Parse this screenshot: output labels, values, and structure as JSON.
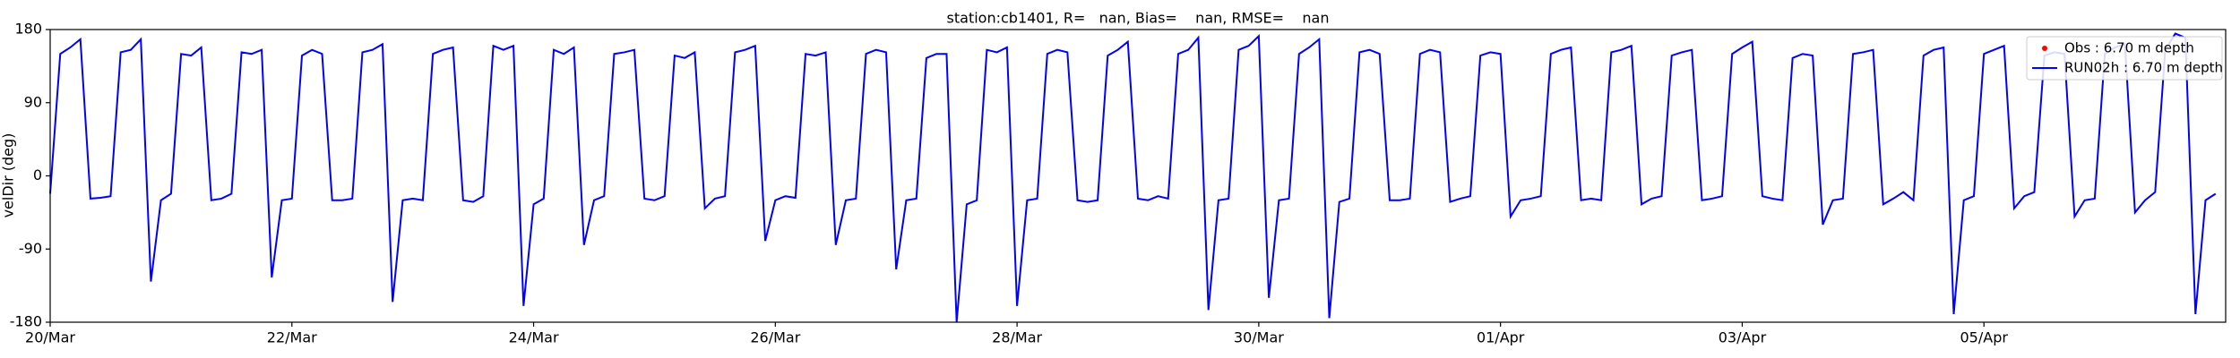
{
  "chart_data": {
    "type": "line",
    "title": "station:cb1401, R=   nan, Bias=    nan, RMSE=    nan",
    "ylabel": "velDir (deg)",
    "xlim": [
      "20/Mar",
      "07/Apr"
    ],
    "xticks": [
      "20/Mar",
      "22/Mar",
      "24/Mar",
      "26/Mar",
      "28/Mar",
      "30/Mar",
      "01/Apr",
      "03/Apr",
      "05/Apr"
    ],
    "ylim": [
      -180,
      180
    ],
    "yticks": [
      -180,
      -90,
      0,
      90,
      180
    ],
    "grid": false,
    "legend": "upper right",
    "x": [
      "20/Mar 00:00",
      "20/Mar 02:00",
      "20/Mar 04:00",
      "20/Mar 06:00",
      "20/Mar 08:00",
      "20/Mar 10:00",
      "20/Mar 12:00",
      "20/Mar 14:00",
      "20/Mar 16:00",
      "20/Mar 18:00",
      "20/Mar 20:00",
      "20/Mar 22:00",
      "21/Mar 00:00",
      "21/Mar 02:00",
      "21/Mar 04:00",
      "21/Mar 06:00",
      "21/Mar 08:00",
      "21/Mar 10:00",
      "21/Mar 12:00",
      "21/Mar 14:00",
      "21/Mar 16:00",
      "21/Mar 18:00",
      "21/Mar 20:00",
      "21/Mar 22:00",
      "22/Mar 00:00",
      "22/Mar 02:00",
      "22/Mar 04:00",
      "22/Mar 06:00",
      "22/Mar 08:00",
      "22/Mar 10:00",
      "22/Mar 12:00",
      "22/Mar 14:00",
      "22/Mar 16:00",
      "22/Mar 18:00",
      "22/Mar 20:00",
      "22/Mar 22:00",
      "23/Mar 00:00",
      "23/Mar 02:00",
      "23/Mar 04:00",
      "23/Mar 06:00",
      "23/Mar 08:00",
      "23/Mar 10:00",
      "23/Mar 12:00",
      "23/Mar 14:00",
      "23/Mar 16:00",
      "23/Mar 18:00",
      "23/Mar 20:00",
      "23/Mar 22:00",
      "24/Mar 00:00",
      "24/Mar 02:00",
      "24/Mar 04:00",
      "24/Mar 06:00",
      "24/Mar 08:00",
      "24/Mar 10:00",
      "24/Mar 12:00",
      "24/Mar 14:00",
      "24/Mar 16:00",
      "24/Mar 18:00",
      "24/Mar 20:00",
      "24/Mar 22:00",
      "25/Mar 00:00",
      "25/Mar 02:00",
      "25/Mar 04:00",
      "25/Mar 06:00",
      "25/Mar 08:00",
      "25/Mar 10:00",
      "25/Mar 12:00",
      "25/Mar 14:00",
      "25/Mar 16:00",
      "25/Mar 18:00",
      "25/Mar 20:00",
      "25/Mar 22:00",
      "26/Mar 00:00",
      "26/Mar 02:00",
      "26/Mar 04:00",
      "26/Mar 06:00",
      "26/Mar 08:00",
      "26/Mar 10:00",
      "26/Mar 12:00",
      "26/Mar 14:00",
      "26/Mar 16:00",
      "26/Mar 18:00",
      "26/Mar 20:00",
      "26/Mar 22:00",
      "27/Mar 00:00",
      "27/Mar 02:00",
      "27/Mar 04:00",
      "27/Mar 06:00",
      "27/Mar 08:00",
      "27/Mar 10:00",
      "27/Mar 12:00",
      "27/Mar 14:00",
      "27/Mar 16:00",
      "27/Mar 18:00",
      "27/Mar 20:00",
      "27/Mar 22:00",
      "28/Mar 00:00",
      "28/Mar 02:00",
      "28/Mar 04:00",
      "28/Mar 06:00",
      "28/Mar 08:00",
      "28/Mar 10:00",
      "28/Mar 12:00",
      "28/Mar 14:00",
      "28/Mar 16:00",
      "28/Mar 18:00",
      "28/Mar 20:00",
      "28/Mar 22:00",
      "29/Mar 00:00",
      "29/Mar 02:00",
      "29/Mar 04:00",
      "29/Mar 06:00",
      "29/Mar 08:00",
      "29/Mar 10:00",
      "29/Mar 12:00",
      "29/Mar 14:00",
      "29/Mar 16:00",
      "29/Mar 18:00",
      "29/Mar 20:00",
      "29/Mar 22:00",
      "30/Mar 00:00",
      "30/Mar 02:00",
      "30/Mar 04:00",
      "30/Mar 06:00",
      "30/Mar 08:00",
      "30/Mar 10:00",
      "30/Mar 12:00",
      "30/Mar 14:00",
      "30/Mar 16:00",
      "30/Mar 18:00",
      "30/Mar 20:00",
      "30/Mar 22:00",
      "31/Mar 00:00",
      "31/Mar 02:00",
      "31/Mar 04:00",
      "31/Mar 06:00",
      "31/Mar 08:00",
      "31/Mar 10:00",
      "31/Mar 12:00",
      "31/Mar 14:00",
      "31/Mar 16:00",
      "31/Mar 18:00",
      "31/Mar 20:00",
      "31/Mar 22:00",
      "01/Apr 00:00",
      "01/Apr 02:00",
      "01/Apr 04:00",
      "01/Apr 06:00",
      "01/Apr 08:00",
      "01/Apr 10:00",
      "01/Apr 12:00",
      "01/Apr 14:00",
      "01/Apr 16:00",
      "01/Apr 18:00",
      "01/Apr 20:00",
      "01/Apr 22:00",
      "02/Apr 00:00",
      "02/Apr 02:00",
      "02/Apr 04:00",
      "02/Apr 06:00",
      "02/Apr 08:00",
      "02/Apr 10:00",
      "02/Apr 12:00",
      "02/Apr 14:00",
      "02/Apr 16:00",
      "02/Apr 18:00",
      "02/Apr 20:00",
      "02/Apr 22:00",
      "03/Apr 00:00",
      "03/Apr 02:00",
      "03/Apr 04:00",
      "03/Apr 06:00",
      "03/Apr 08:00",
      "03/Apr 10:00",
      "03/Apr 12:00",
      "03/Apr 14:00",
      "03/Apr 16:00",
      "03/Apr 18:00",
      "03/Apr 20:00",
      "03/Apr 22:00",
      "04/Apr 00:00",
      "04/Apr 02:00",
      "04/Apr 04:00",
      "04/Apr 06:00",
      "04/Apr 08:00",
      "04/Apr 10:00",
      "04/Apr 12:00",
      "04/Apr 14:00",
      "04/Apr 16:00",
      "04/Apr 18:00",
      "04/Apr 20:00",
      "04/Apr 22:00",
      "05/Apr 00:00",
      "05/Apr 02:00",
      "05/Apr 04:00",
      "05/Apr 06:00",
      "05/Apr 08:00",
      "05/Apr 10:00",
      "05/Apr 12:00",
      "05/Apr 14:00",
      "05/Apr 16:00",
      "05/Apr 18:00",
      "05/Apr 20:00",
      "05/Apr 22:00",
      "06/Apr 00:00",
      "06/Apr 02:00",
      "06/Apr 04:00",
      "06/Apr 06:00",
      "06/Apr 08:00",
      "06/Apr 10:00",
      "06/Apr 12:00",
      "06/Apr 14:00",
      "06/Apr 16:00",
      "06/Apr 18:00",
      "06/Apr 20:00",
      "06/Apr 22:00"
    ],
    "series": [
      {
        "name": "Obs : 6.70 m depth",
        "color": "#ff0000",
        "marker": "dot",
        "values": [
          null,
          null,
          null,
          null,
          null,
          null,
          null,
          null,
          null,
          null,
          null,
          null,
          null,
          null,
          null,
          null,
          null,
          null,
          null,
          null,
          null,
          null,
          null,
          null,
          null,
          null,
          null,
          null,
          null,
          null,
          null,
          null,
          null,
          null,
          null,
          null,
          null,
          null,
          null,
          null,
          null,
          null,
          null,
          null,
          null,
          null,
          null,
          null,
          null,
          null,
          null,
          null,
          null,
          null,
          null,
          null,
          null,
          null,
          null,
          null,
          null,
          null,
          null,
          null,
          null,
          null,
          null,
          null,
          null,
          null,
          null,
          null,
          null,
          null,
          null,
          null,
          null,
          null,
          null,
          null,
          null,
          null,
          null,
          null,
          null,
          null,
          null,
          null,
          null,
          null,
          null,
          null,
          null,
          null,
          null,
          null,
          null,
          null,
          null,
          null,
          null,
          null,
          null,
          null,
          null,
          null,
          null,
          null,
          null,
          null,
          null,
          null,
          null,
          null,
          null,
          null,
          null,
          null,
          null,
          null,
          null,
          null,
          null,
          null,
          null,
          null,
          null,
          null,
          null,
          null,
          null,
          null,
          null,
          null,
          null,
          null,
          null,
          null,
          null,
          null,
          null,
          null,
          null,
          null,
          null,
          null,
          null,
          null,
          null,
          null,
          null,
          null,
          null,
          null,
          null,
          null,
          null,
          null,
          null,
          null,
          null,
          null,
          null,
          null,
          null,
          null,
          null,
          null,
          null,
          null,
          null,
          null,
          null,
          null,
          null,
          null,
          null,
          null,
          null,
          null,
          null,
          null,
          null,
          null,
          null,
          null,
          null,
          null,
          null,
          null,
          null,
          null,
          null,
          null,
          null,
          null,
          null,
          null,
          null,
          null,
          null,
          null,
          null,
          null,
          null,
          null,
          null,
          null,
          null,
          null,
          null,
          null,
          null,
          null,
          null,
          null
        ]
      },
      {
        "name": "RUN02h : 6.70 m depth",
        "color": "#0000ff",
        "marker": "line",
        "values": [
          -22,
          150,
          158,
          168,
          -28,
          -27,
          -25,
          152,
          155,
          168,
          -130,
          -30,
          -22,
          150,
          148,
          158,
          -30,
          -28,
          -22,
          152,
          150,
          155,
          -125,
          -30,
          -28,
          148,
          155,
          150,
          -30,
          -30,
          -28,
          152,
          155,
          162,
          -155,
          -30,
          -28,
          -30,
          150,
          155,
          158,
          -30,
          -32,
          -25,
          160,
          155,
          160,
          -160,
          -35,
          -28,
          155,
          150,
          158,
          -85,
          -30,
          -25,
          150,
          152,
          155,
          -28,
          -30,
          -25,
          148,
          145,
          152,
          -40,
          -28,
          -25,
          152,
          155,
          160,
          -80,
          -30,
          -25,
          -27,
          150,
          148,
          152,
          -85,
          -30,
          -28,
          150,
          155,
          152,
          -115,
          -30,
          -28,
          145,
          150,
          150,
          -180,
          -35,
          -30,
          155,
          152,
          158,
          -160,
          -30,
          -28,
          150,
          155,
          152,
          -30,
          -32,
          -30,
          148,
          155,
          165,
          -28,
          -30,
          -25,
          -28,
          150,
          155,
          170,
          -165,
          -30,
          -28,
          155,
          160,
          172,
          -150,
          -30,
          -28,
          150,
          158,
          168,
          -175,
          -32,
          -28,
          152,
          155,
          150,
          -30,
          -30,
          -28,
          150,
          155,
          152,
          -32,
          -28,
          -25,
          148,
          152,
          150,
          -50,
          -30,
          -28,
          -25,
          150,
          155,
          158,
          -30,
          -28,
          -30,
          152,
          155,
          160,
          -35,
          -28,
          -25,
          148,
          152,
          155,
          -30,
          -28,
          -25,
          150,
          158,
          165,
          -25,
          -28,
          -30,
          145,
          150,
          148,
          -60,
          -30,
          -28,
          150,
          152,
          155,
          -35,
          -28,
          -20,
          -30,
          148,
          155,
          158,
          -170,
          -30,
          -25,
          150,
          155,
          160,
          -40,
          -25,
          -20,
          148,
          152,
          150,
          -50,
          -30,
          -28,
          150,
          158,
          162,
          -45,
          -30,
          -20,
          155,
          175,
          170,
          -170,
          -30,
          -22
        ]
      }
    ]
  }
}
